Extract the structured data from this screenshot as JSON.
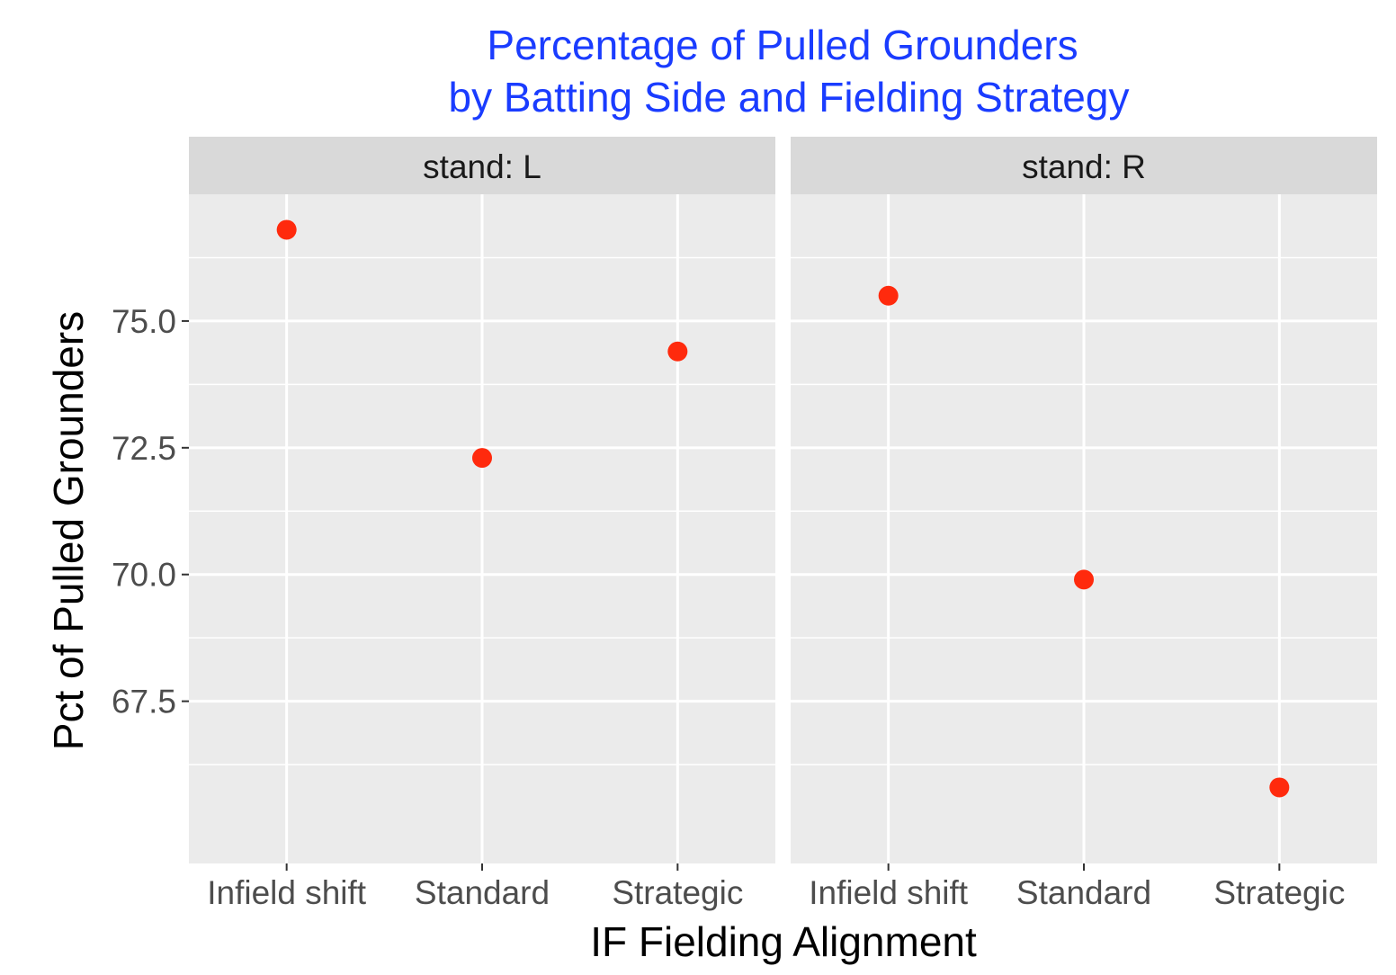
{
  "title_line1": "Percentage of Pulled Grounders",
  "title_line2": "by Batting Side and Fielding Strategy",
  "chart_data": {
    "type": "scatter",
    "title": "Percentage of Pulled Grounders by Batting Side and Fielding Strategy",
    "xlabel": "IF Fielding Alignment",
    "ylabel": "Pct of Pulled Grounders",
    "categories": [
      "Infield shift",
      "Standard",
      "Strategic"
    ],
    "yticks": [
      67.5,
      70.0,
      72.5,
      75.0
    ],
    "ytick_labels": [
      "67.5",
      "70.0",
      "72.5",
      "75.0"
    ],
    "ylim": [
      64.3,
      77.5
    ],
    "grid": true,
    "point_color": "#ff2a0d",
    "panel_bg": "#ebebeb",
    "strip_bg": "#d9d9d9",
    "title_color": "#1a3cff",
    "facets": [
      {
        "label": "stand: L",
        "values": [
          76.8,
          72.3,
          74.4
        ]
      },
      {
        "label": "stand: R",
        "values": [
          75.5,
          69.9,
          65.8
        ]
      }
    ]
  }
}
